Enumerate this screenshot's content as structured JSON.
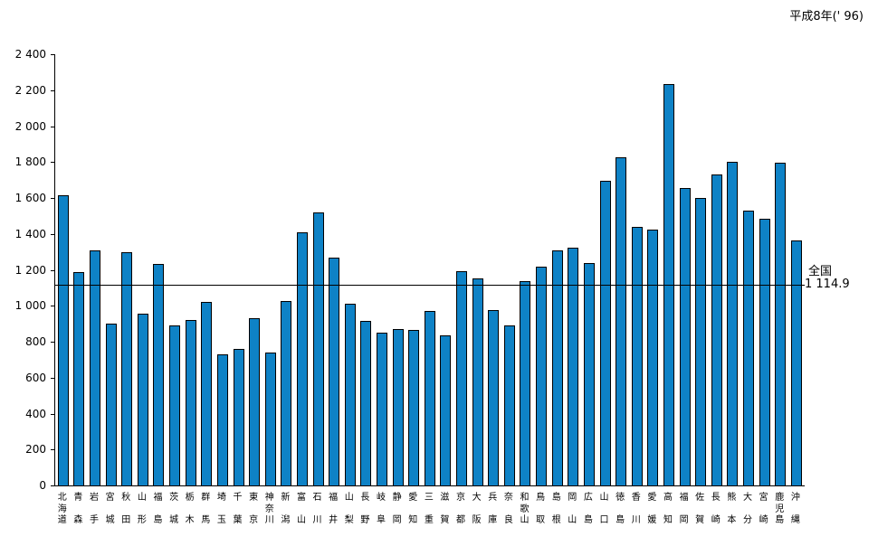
{
  "title": "平成8年(' 96)",
  "annotation": {
    "label": "全国",
    "value_text": "1 114.9",
    "value": 1114.9
  },
  "colors": {
    "bar_fill": "#0e82c6",
    "bar_border": "#000000",
    "axis": "#000000",
    "background": "#ffffff"
  },
  "chart_data": {
    "type": "bar",
    "title": "平成8年(' 96)",
    "categories": [
      "北海道",
      "青森",
      "岩手",
      "宮城",
      "秋田",
      "山形",
      "福島",
      "茨城",
      "栃木",
      "群馬",
      "埼玉",
      "千葉",
      "東京",
      "神奈川",
      "新潟",
      "富山",
      "石川",
      "福井",
      "山梨",
      "長野",
      "岐阜",
      "静岡",
      "愛知",
      "三重",
      "滋賀",
      "京都",
      "大阪",
      "兵庫",
      "奈良",
      "和歌山",
      "鳥取",
      "島根",
      "岡山",
      "広島",
      "山口",
      "徳島",
      "香川",
      "愛媛",
      "高知",
      "福岡",
      "佐賀",
      "長崎",
      "熊本",
      "大分",
      "宮崎",
      "鹿児島",
      "沖縄"
    ],
    "values": [
      1615,
      1190,
      1310,
      900,
      1300,
      955,
      1235,
      890,
      920,
      1020,
      730,
      760,
      930,
      740,
      1025,
      1410,
      1520,
      1270,
      1010,
      915,
      850,
      870,
      865,
      970,
      835,
      1195,
      1150,
      975,
      890,
      1135,
      1220,
      1310,
      1325,
      1240,
      1695,
      1825,
      1440,
      1425,
      2235,
      1655,
      1600,
      1730,
      1800,
      1530,
      1485,
      1795,
      1365
    ],
    "xlabel": "",
    "ylabel": "",
    "ylim": [
      0,
      2400
    ],
    "ytick_step": 200,
    "ytick_labels": [
      "0",
      "200",
      "400",
      "600",
      "800",
      "1 000",
      "1 200",
      "1 400",
      "1 600",
      "1 800",
      "2 000",
      "2 200",
      "2 400"
    ],
    "reference_line": {
      "label": "全国",
      "value": 1114.9,
      "value_text": "1 114.9"
    },
    "grid": false,
    "legend": "none"
  }
}
